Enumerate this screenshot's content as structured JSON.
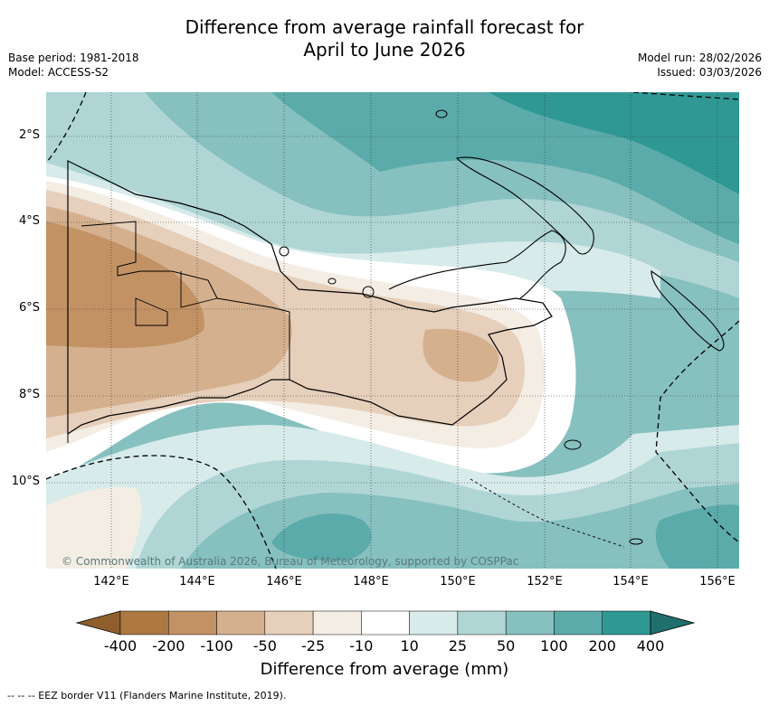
{
  "title": {
    "line1": "Difference from average rainfall forecast for",
    "line2": "April to June 2026"
  },
  "meta": {
    "base_period": "Base period: 1981-2018",
    "model": "Model: ACCESS-S2",
    "model_run": "Model run: 28/02/2026",
    "issued": "Issued: 03/03/2026"
  },
  "axes": {
    "lon_labels": [
      "142°E",
      "144°E",
      "146°E",
      "148°E",
      "150°E",
      "152°E",
      "154°E",
      "156°E"
    ],
    "lat_labels": [
      "2°S",
      "4°S",
      "6°S",
      "8°S",
      "10°S"
    ]
  },
  "colorbar": {
    "labels": [
      "-400",
      "-200",
      "-100",
      "-50",
      "-25",
      "-10",
      "10",
      "25",
      "50",
      "100",
      "200",
      "400"
    ],
    "colors": [
      "#8f5e2c",
      "#ad7742",
      "#c29265",
      "#d4b08e",
      "#e6cfbb",
      "#f3ede4",
      "#ffffff",
      "#d7ebea",
      "#afd6d5",
      "#86c0bf",
      "#5aabaa",
      "#2f9895",
      "#1f706c"
    ],
    "title": "Difference from average (mm)"
  },
  "copyright": "© Commonwealth of Australia 2026, Bureau of Meteorology, supported by COSPPac",
  "footnote": "-- -- -- EEZ border V11 (Flanders Marine Institute, 2019)."
}
